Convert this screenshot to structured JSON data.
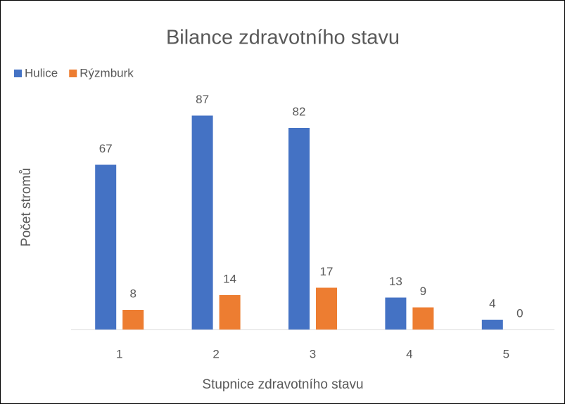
{
  "chart_data": {
    "type": "bar",
    "title": "Bilance zdravotního stavu",
    "x_label": "Stupnice zdravotního stavu",
    "y_label": "Počet stromů",
    "categories": [
      "1",
      "2",
      "3",
      "4",
      "5"
    ],
    "series": [
      {
        "name": "Hulice",
        "color": "#4472c4",
        "values": [
          67,
          87,
          82,
          13,
          4
        ]
      },
      {
        "name": "Rýzmburk",
        "color": "#ed7d31",
        "values": [
          8,
          14,
          17,
          9,
          0
        ]
      }
    ],
    "ylim": [
      0,
      100
    ],
    "legend": "top-left"
  }
}
